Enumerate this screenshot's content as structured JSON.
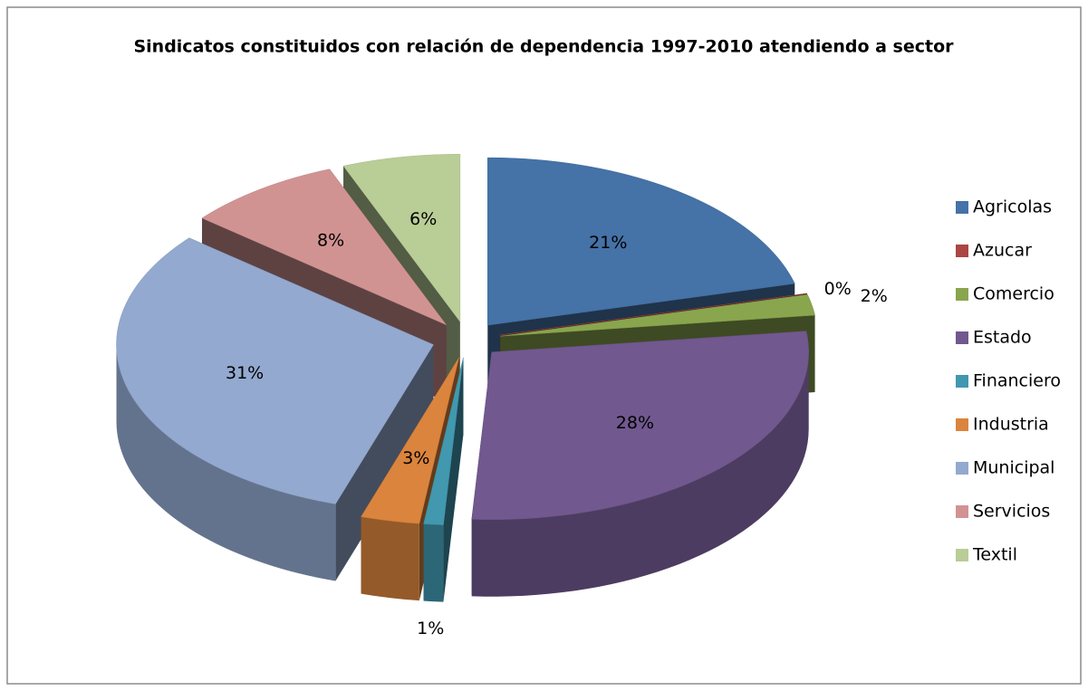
{
  "chart_data": {
    "type": "pie",
    "title": "Sindicatos constituidos con relación de dependencia 1997-2010 atendiendo a sector",
    "categories": [
      "Agricolas",
      "Azucar",
      "Comercio",
      "Estado",
      "Financiero",
      "Industria",
      "Municipal",
      "Servicios",
      "Textil"
    ],
    "values": [
      21,
      0,
      2,
      28,
      1,
      3,
      31,
      8,
      6
    ],
    "value_labels": [
      "21%",
      "0%",
      "2%",
      "28%",
      "1%",
      "3%",
      "31%",
      "8%",
      "6%"
    ],
    "colors": [
      "#4572a7",
      "#aa4643",
      "#89a54e",
      "#71588f",
      "#4198af",
      "#db843d",
      "#93a9cf",
      "#d19392",
      "#b9cd96"
    ],
    "legend": "right"
  }
}
